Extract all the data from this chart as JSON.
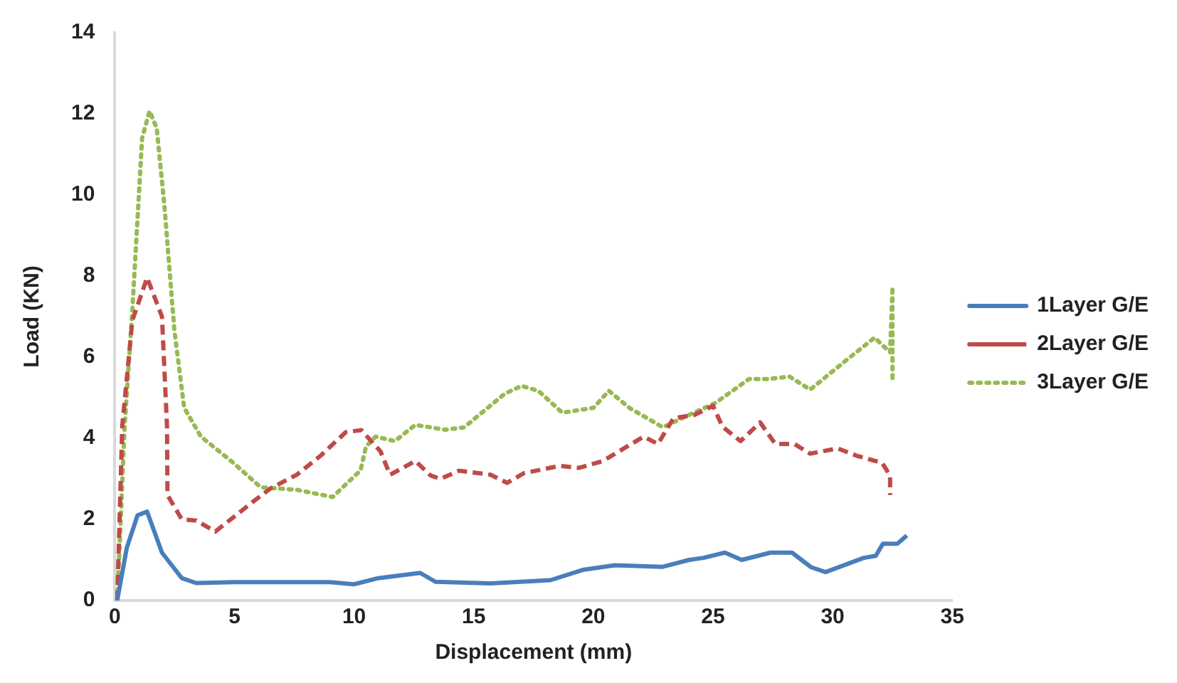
{
  "chart_data": {
    "type": "line",
    "xlabel": "Displacement (mm)",
    "ylabel": "Load (KN)",
    "xlim": [
      0,
      35
    ],
    "xticks": [
      0,
      5,
      10,
      15,
      20,
      25,
      30,
      35
    ],
    "ylim": [
      0,
      14
    ],
    "yticks": [
      0,
      2,
      4,
      6,
      8,
      10,
      12,
      14
    ],
    "grid": false,
    "legend": "right",
    "marker": "none",
    "series": [
      {
        "name": "1Layer G/E",
        "color": "#4a7ebb",
        "line_style": "solid",
        "x": [
          0.1,
          0.5,
          0.95,
          1.35,
          1.97,
          2.8,
          3.4,
          5,
          7,
          9,
          10,
          11,
          12.76,
          13.4,
          15.7,
          18.2,
          19.6,
          20.9,
          22.9,
          24,
          24.6,
          25.5,
          26.2,
          27.4,
          28.3,
          29.1,
          29.7,
          31.3,
          31.8,
          32.1,
          32.7,
          33.1
        ],
        "values": [
          0,
          1.3,
          2.1,
          2.19,
          1.18,
          0.55,
          0.43,
          0.45,
          0.45,
          0.45,
          0.4,
          0.55,
          0.68,
          0.46,
          0.42,
          0.5,
          0.76,
          0.87,
          0.83,
          1.0,
          1.05,
          1.18,
          1.0,
          1.18,
          1.18,
          0.82,
          0.7,
          1.05,
          1.1,
          1.4,
          1.4,
          1.6
        ]
      },
      {
        "name": "2Layer G/E",
        "color": "#be4b48",
        "line_style": "dashed",
        "x": [
          0.1,
          0.31,
          0.73,
          1.35,
          1.97,
          2.18,
          2.2,
          2.8,
          3.4,
          4.2,
          5.7,
          6.5,
          7.6,
          8.6,
          9.65,
          10.3,
          11.1,
          11.5,
          12.56,
          13.2,
          13.6,
          14.4,
          15.7,
          16.4,
          17.1,
          18.6,
          19.4,
          20.4,
          22.1,
          22.7,
          23.35,
          24.2,
          25.0,
          25.4,
          26.15,
          26.97,
          27.6,
          28.4,
          29.06,
          30.2,
          31.0,
          32.07,
          32.4,
          32.4
        ],
        "values": [
          0,
          4.3,
          6.9,
          7.96,
          7.0,
          4.3,
          2.6,
          2.0,
          1.97,
          1.7,
          2.4,
          2.76,
          3.1,
          3.57,
          4.15,
          4.2,
          3.68,
          3.1,
          3.44,
          3.08,
          3.0,
          3.2,
          3.1,
          2.9,
          3.14,
          3.32,
          3.27,
          3.44,
          4.04,
          3.86,
          4.5,
          4.57,
          4.8,
          4.28,
          3.93,
          4.39,
          3.86,
          3.86,
          3.62,
          3.75,
          3.57,
          3.39,
          3.08,
          2.6
        ]
      },
      {
        "name": "3Layer G/E",
        "color": "#98b954",
        "line_style": "dotted",
        "x": [
          0.1,
          0.41,
          0.73,
          1.14,
          1.45,
          1.75,
          2.07,
          2.49,
          2.9,
          3.6,
          4.86,
          6.1,
          7.6,
          9.1,
          10.27,
          10.5,
          10.9,
          11.7,
          12.56,
          13.8,
          14.6,
          16.3,
          17.0,
          17.7,
          18.7,
          20.0,
          20.65,
          21.5,
          22.9,
          24.2,
          25.1,
          26.5,
          27.3,
          28.2,
          29.06,
          30.6,
          31.75,
          32.4,
          32.5,
          32.5
        ],
        "values": [
          0,
          4.3,
          7.14,
          11.4,
          12.07,
          11.65,
          9.75,
          6.65,
          4.75,
          4.04,
          3.44,
          2.79,
          2.73,
          2.55,
          3.21,
          3.8,
          4.04,
          3.93,
          4.33,
          4.21,
          4.27,
          5.1,
          5.29,
          5.17,
          4.63,
          4.75,
          5.17,
          4.75,
          4.27,
          4.63,
          4.87,
          5.46,
          5.46,
          5.52,
          5.2,
          5.94,
          6.48,
          6.12,
          7.73,
          5.46
        ]
      }
    ]
  }
}
